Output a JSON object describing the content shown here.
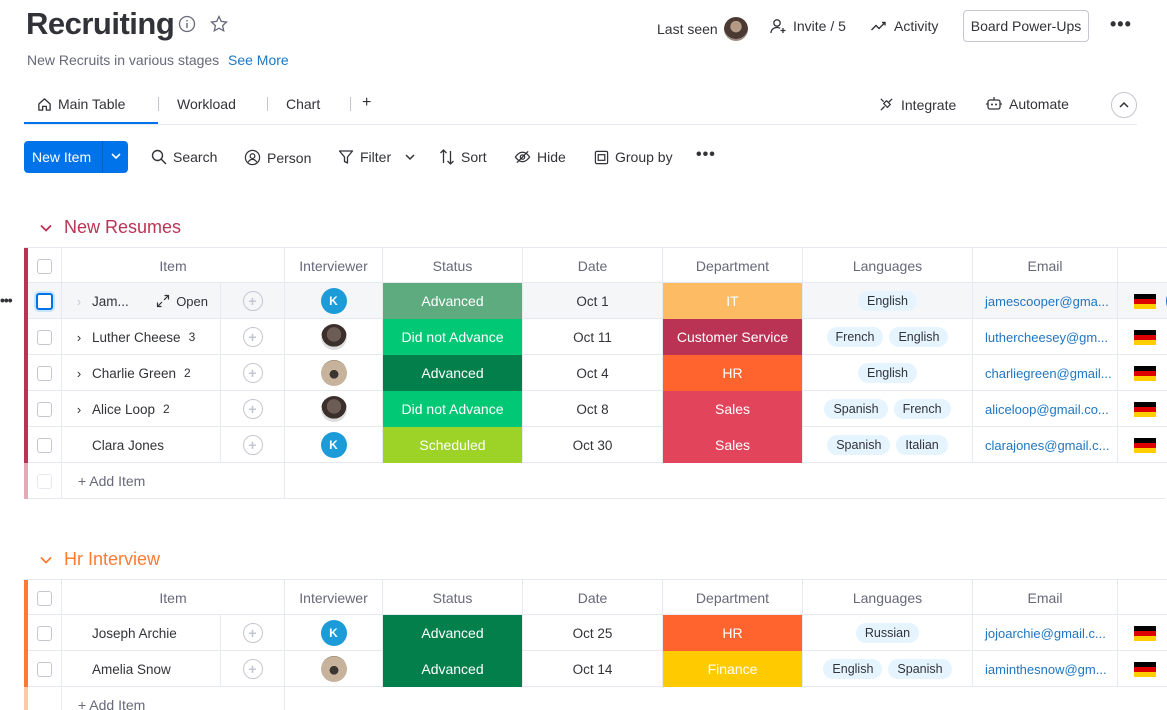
{
  "header": {
    "title": "Recruiting",
    "subtitle": "New Recruits in various stages",
    "see_more": "See More",
    "last_seen": "Last seen",
    "invite": "Invite / 5",
    "activity": "Activity",
    "power_ups": "Board Power-Ups"
  },
  "tabs": {
    "main_table": "Main Table",
    "workload": "Workload",
    "chart": "Chart",
    "add": "+",
    "integrate": "Integrate",
    "automate": "Automate"
  },
  "toolbar": {
    "new_item": "New Item",
    "search": "Search",
    "person": "Person",
    "filter": "Filter",
    "sort": "Sort",
    "hide": "Hide",
    "group_by": "Group by"
  },
  "columns": {
    "item": "Item",
    "interviewer": "Interviewer",
    "status": "Status",
    "date": "Date",
    "department": "Department",
    "languages": "Languages",
    "email": "Email"
  },
  "colors": {
    "new_resumes": "#bb3354",
    "hr_interview": "#ff7b32",
    "advanced_light": "#5dab7e",
    "advanced": "#037f4c",
    "did_not_advance": "#00c875",
    "scheduled": "#9cd326",
    "it": "#fdbc64",
    "customer_service": "#bb3354",
    "hr": "#ff642e",
    "sales": "#e2445c",
    "finance": "#ffcb00"
  },
  "groups": {
    "new_resumes": {
      "title": "New Resumes",
      "open_label": "Open",
      "add_item": "+ Add Item",
      "rows": [
        {
          "name": "Jam...",
          "sub": "",
          "status": "Advanced",
          "date": "Oct 1",
          "dept": "IT",
          "lang1": "English",
          "lang2": "",
          "email": "jamescooper@gma..."
        },
        {
          "name": "Luther Cheese",
          "sub": "3",
          "status": "Did not Advance",
          "date": "Oct 11",
          "dept": "Customer Service",
          "lang1": "French",
          "lang2": "English",
          "email": "luthercheesey@gm..."
        },
        {
          "name": "Charlie Green",
          "sub": "2",
          "status": "Advanced",
          "date": "Oct 4",
          "dept": "HR",
          "lang1": "English",
          "lang2": "",
          "email": "charliegreen@gmail..."
        },
        {
          "name": "Alice Loop",
          "sub": "2",
          "status": "Did not Advance",
          "date": "Oct 8",
          "dept": "Sales",
          "lang1": "Spanish",
          "lang2": "French",
          "email": "aliceloop@gmail.co..."
        },
        {
          "name": "Clara Jones",
          "sub": "",
          "status": "Scheduled",
          "date": "Oct 30",
          "dept": "Sales",
          "lang1": "Spanish",
          "lang2": "Italian",
          "email": "clarajones@gmail.c..."
        }
      ]
    },
    "hr_interview": {
      "title": "Hr Interview",
      "add_item": "+ Add Item",
      "rows": [
        {
          "name": "Joseph Archie",
          "status": "Advanced",
          "date": "Oct 25",
          "dept": "HR",
          "lang1": "Russian",
          "lang2": "",
          "email": "jojoarchie@gmail.c..."
        },
        {
          "name": "Amelia Snow",
          "status": "Advanced",
          "date": "Oct 14",
          "dept": "Finance",
          "lang1": "English",
          "lang2": "Spanish",
          "email": "iaminthesnow@gm..."
        }
      ]
    }
  },
  "avatar_letter": "K",
  "icons": [
    "info-icon",
    "star-icon",
    "person-plus-icon",
    "activity-icon",
    "home-icon",
    "integrate-icon",
    "automate-icon",
    "search-icon",
    "person-icon",
    "filter-icon",
    "sort-icon",
    "hide-icon",
    "group-icon",
    "chevron-down-icon",
    "expand-icon",
    "update-icon",
    "germany-flag-icon"
  ]
}
